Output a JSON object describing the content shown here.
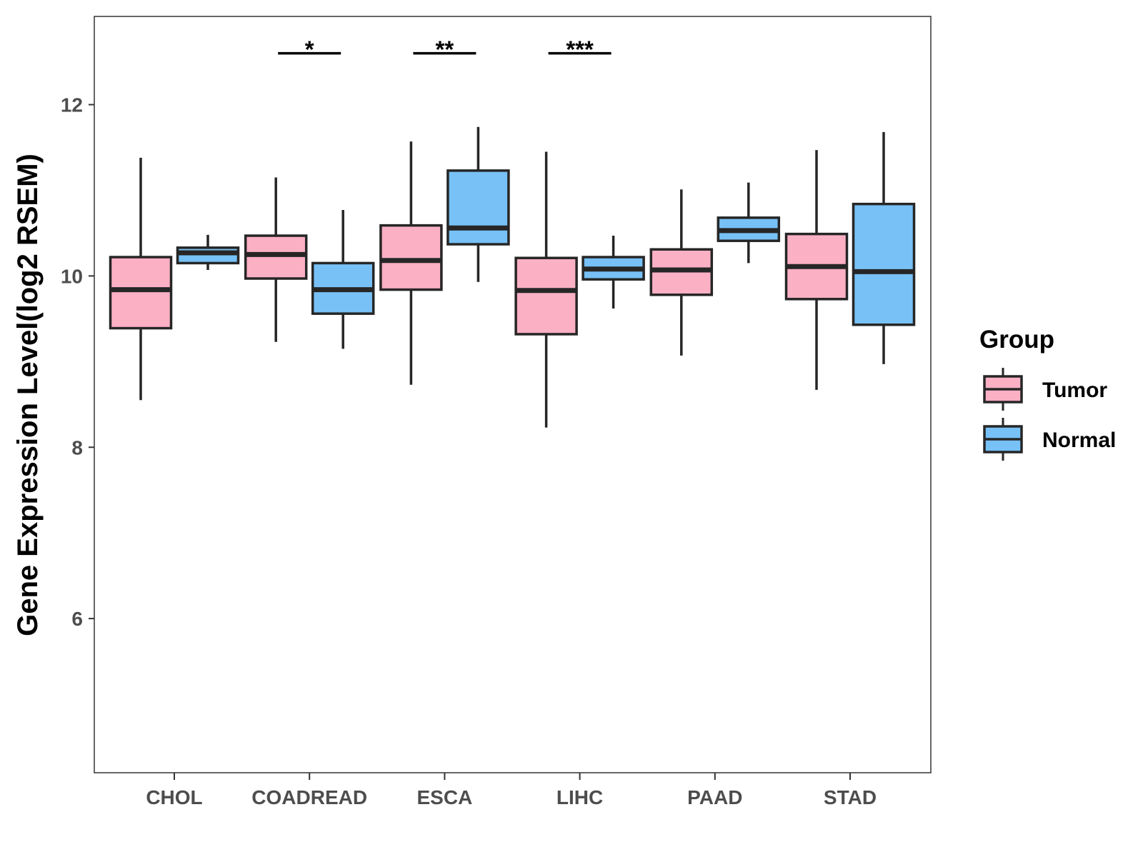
{
  "chart_data": {
    "type": "boxplot",
    "title": "",
    "xlabel": "",
    "ylabel": "Gene Expression Level(log2 RSEM)",
    "ylim": [
      4.2,
      13.03
    ],
    "yticks": [
      6,
      8,
      10,
      12
    ],
    "categories": [
      "CHOL",
      "COADREAD",
      "ESCA",
      "LIHC",
      "PAAD",
      "STAD"
    ],
    "legend_title": "Group",
    "legend_position": "right",
    "series": [
      {
        "name": "Tumor",
        "color": "#FBB0C4",
        "boxes": [
          {
            "category": "CHOL",
            "min": 8.55,
            "q1": 9.39,
            "median": 9.84,
            "q3": 10.22,
            "max": 11.38
          },
          {
            "category": "COADREAD",
            "min": 9.23,
            "q1": 9.97,
            "median": 10.25,
            "q3": 10.47,
            "max": 11.15
          },
          {
            "category": "ESCA",
            "min": 8.73,
            "q1": 9.84,
            "median": 10.18,
            "q3": 10.59,
            "max": 11.57
          },
          {
            "category": "LIHC",
            "min": 8.23,
            "q1": 9.32,
            "median": 9.83,
            "q3": 10.21,
            "max": 11.45
          },
          {
            "category": "PAAD",
            "min": 9.07,
            "q1": 9.78,
            "median": 10.07,
            "q3": 10.31,
            "max": 11.01
          },
          {
            "category": "STAD",
            "min": 8.67,
            "q1": 9.73,
            "median": 10.11,
            "q3": 10.49,
            "max": 11.47
          }
        ]
      },
      {
        "name": "Normal",
        "color": "#77C1F7",
        "boxes": [
          {
            "category": "CHOL",
            "min": 10.07,
            "q1": 10.15,
            "median": 10.27,
            "q3": 10.33,
            "max": 10.48
          },
          {
            "category": "COADREAD",
            "min": 9.15,
            "q1": 9.56,
            "median": 9.84,
            "q3": 10.15,
            "max": 10.77
          },
          {
            "category": "ESCA",
            "min": 9.93,
            "q1": 10.37,
            "median": 10.56,
            "q3": 11.23,
            "max": 11.74
          },
          {
            "category": "LIHC",
            "min": 9.62,
            "q1": 9.96,
            "median": 10.08,
            "q3": 10.22,
            "max": 10.47
          },
          {
            "category": "PAAD",
            "min": 10.15,
            "q1": 10.41,
            "median": 10.53,
            "q3": 10.68,
            "max": 11.09
          },
          {
            "category": "STAD",
            "min": 8.97,
            "q1": 9.43,
            "median": 10.05,
            "q3": 10.84,
            "max": 11.68
          }
        ]
      }
    ],
    "significance": [
      {
        "category": "CHOL",
        "label": ""
      },
      {
        "category": "COADREAD",
        "label": "*"
      },
      {
        "category": "ESCA",
        "label": "**"
      },
      {
        "category": "LIHC",
        "label": "***"
      },
      {
        "category": "PAAD",
        "label": ""
      },
      {
        "category": "STAD",
        "label": ""
      }
    ],
    "significance_level": 12.6
  }
}
